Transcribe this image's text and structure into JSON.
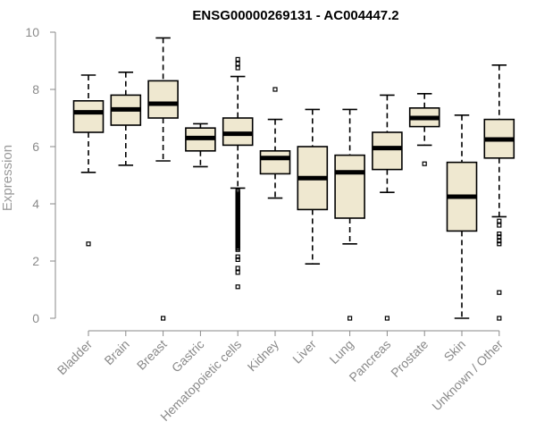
{
  "chart_data": {
    "type": "boxplot",
    "title": "ENSG00000269131 - AC004447.2",
    "xlabel": "",
    "ylabel": "Expression",
    "ylim": [
      0,
      10
    ],
    "yticks": [
      0,
      2,
      4,
      6,
      8,
      10
    ],
    "box_fill": "#efe8d0",
    "categories": [
      "Bladder",
      "Brain",
      "Breast",
      "Gastric",
      "Hematopoietic cells",
      "Kidney",
      "Liver",
      "Lung",
      "Pancreas",
      "Prostate",
      "Skin",
      "Unknown / Other"
    ],
    "boxes": [
      {
        "name": "Bladder",
        "whisker_low": 5.1,
        "q1": 6.5,
        "median": 7.2,
        "q3": 7.6,
        "whisker_high": 8.5,
        "outliers": [
          2.6
        ]
      },
      {
        "name": "Brain",
        "whisker_low": 5.35,
        "q1": 6.75,
        "median": 7.3,
        "q3": 7.8,
        "whisker_high": 8.6,
        "outliers": []
      },
      {
        "name": "Breast",
        "whisker_low": 5.5,
        "q1": 7.0,
        "median": 7.5,
        "q3": 8.3,
        "whisker_high": 9.8,
        "outliers": [
          0.0
        ]
      },
      {
        "name": "Gastric",
        "whisker_low": 5.3,
        "q1": 5.85,
        "median": 6.3,
        "q3": 6.65,
        "whisker_high": 6.8,
        "outliers": []
      },
      {
        "name": "Hematopoietic cells",
        "whisker_low": 4.55,
        "q1": 6.05,
        "median": 6.45,
        "q3": 7.0,
        "whisker_high": 8.45,
        "outliers": [
          9.05,
          8.9,
          8.75,
          4.45,
          4.4,
          4.35,
          4.3,
          4.25,
          4.2,
          4.15,
          4.1,
          4.05,
          4.0,
          3.95,
          3.9,
          3.85,
          3.8,
          3.75,
          3.7,
          3.65,
          3.6,
          3.55,
          3.5,
          3.45,
          3.4,
          3.35,
          3.3,
          3.25,
          3.2,
          3.15,
          3.1,
          3.05,
          3.0,
          2.95,
          2.9,
          2.85,
          2.8,
          2.75,
          2.7,
          2.65,
          2.6,
          2.55,
          2.5,
          2.45,
          2.4,
          2.15,
          2.05,
          1.75,
          1.6,
          1.1
        ]
      },
      {
        "name": "Kidney",
        "whisker_low": 4.2,
        "q1": 5.05,
        "median": 5.6,
        "q3": 5.85,
        "whisker_high": 6.95,
        "outliers": [
          8.0
        ]
      },
      {
        "name": "Liver",
        "whisker_low": 1.9,
        "q1": 3.8,
        "median": 4.9,
        "q3": 6.0,
        "whisker_high": 7.3,
        "outliers": []
      },
      {
        "name": "Lung",
        "whisker_low": 2.6,
        "q1": 3.5,
        "median": 5.1,
        "q3": 5.7,
        "whisker_high": 7.3,
        "outliers": [
          0.0
        ]
      },
      {
        "name": "Pancreas",
        "whisker_low": 4.4,
        "q1": 5.2,
        "median": 5.95,
        "q3": 6.5,
        "whisker_high": 7.8,
        "outliers": [
          0.0
        ]
      },
      {
        "name": "Prostate",
        "whisker_low": 6.05,
        "q1": 6.7,
        "median": 7.0,
        "q3": 7.35,
        "whisker_high": 7.85,
        "outliers": [
          5.4
        ]
      },
      {
        "name": "Skin",
        "whisker_low": 0.0,
        "q1": 3.05,
        "median": 4.25,
        "q3": 5.45,
        "whisker_high": 7.1,
        "outliers": []
      },
      {
        "name": "Unknown / Other",
        "whisker_low": 3.55,
        "q1": 5.6,
        "median": 6.25,
        "q3": 6.95,
        "whisker_high": 8.85,
        "outliers": [
          3.4,
          3.25,
          2.95,
          2.85,
          2.7,
          2.6,
          0.9,
          0.0
        ]
      }
    ]
  }
}
